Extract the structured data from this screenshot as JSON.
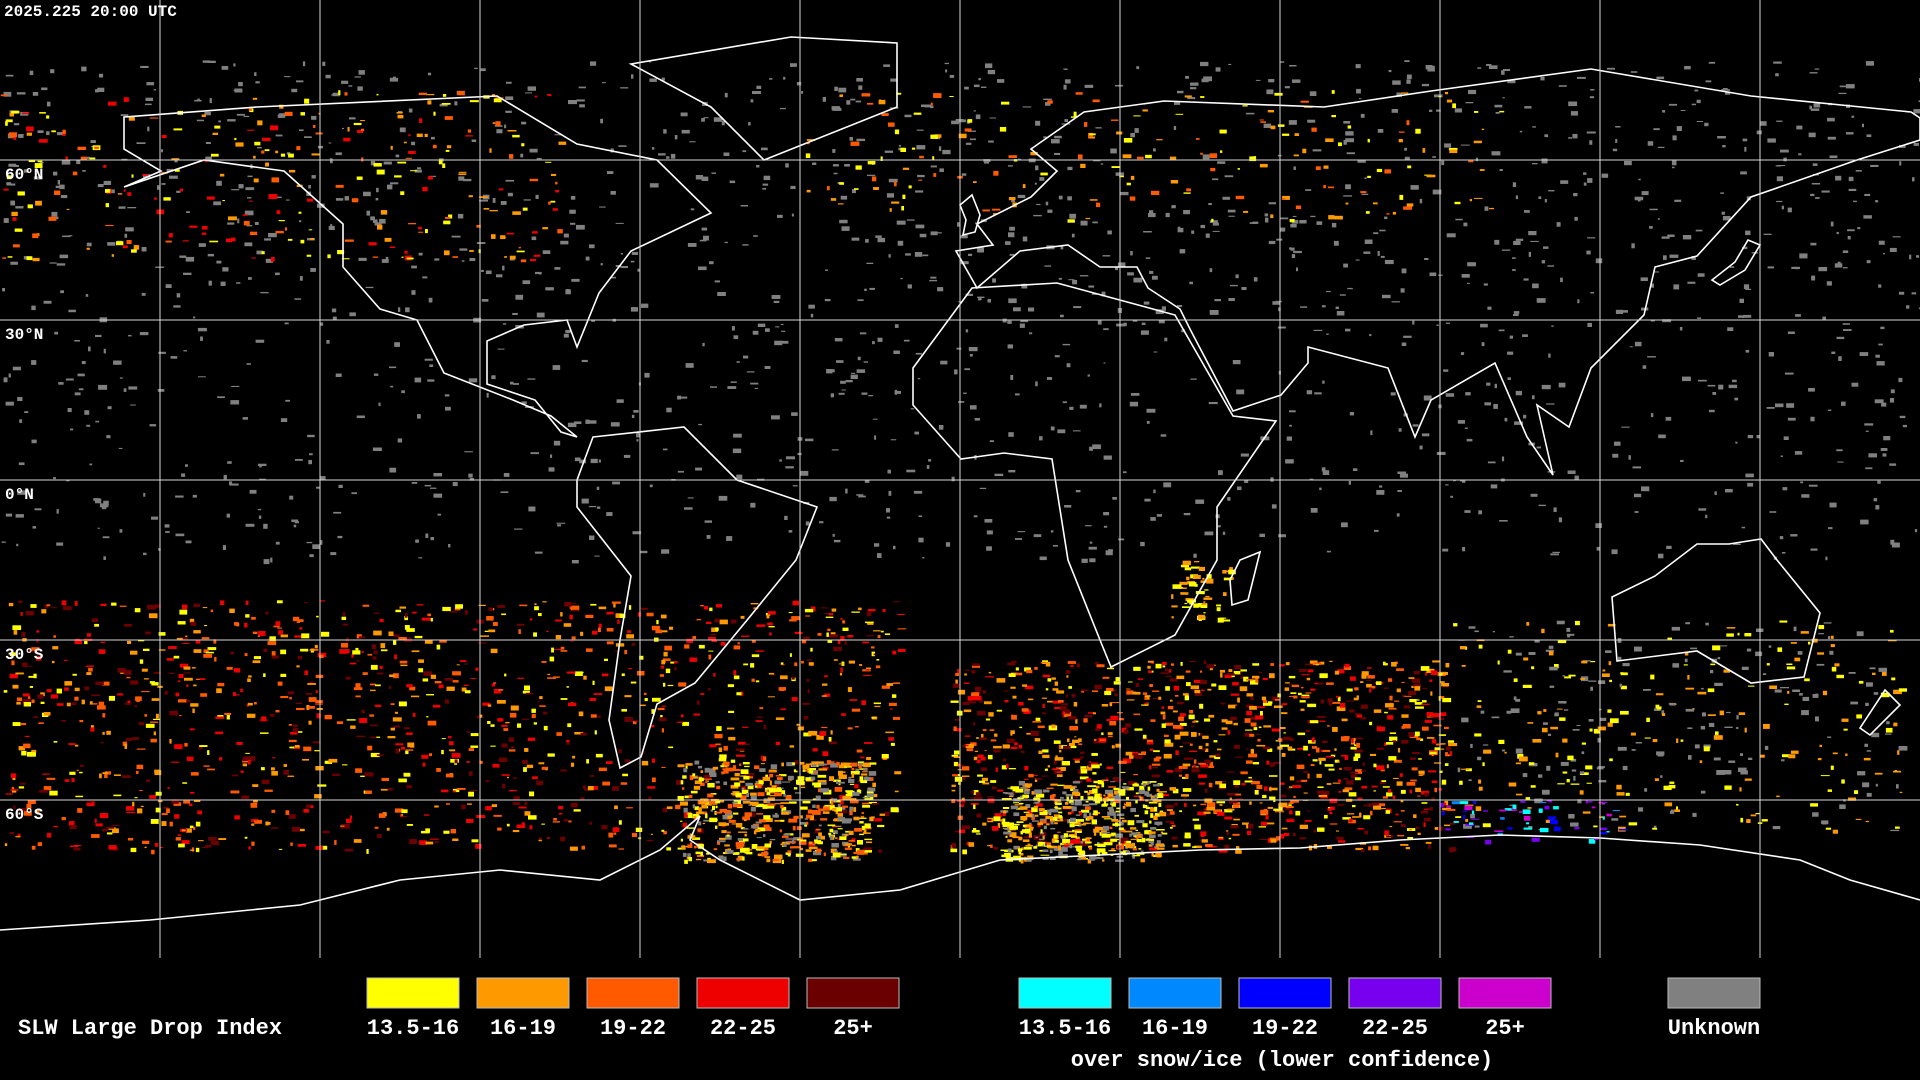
{
  "header": {
    "timestamp": "2025.225 20:00 UTC"
  },
  "map": {
    "latitude_labels": [
      "60°N",
      "30°N",
      "0°N",
      "30°S",
      "60°S"
    ]
  },
  "legend": {
    "title": "SLW Large Drop Index",
    "liquid": [
      {
        "label": "13.5-16",
        "color": "#ffff00"
      },
      {
        "label": "16-19",
        "color": "#ff9900"
      },
      {
        "label": "19-22",
        "color": "#ff5a00"
      },
      {
        "label": "22-25",
        "color": "#ee0000"
      },
      {
        "label": "25+",
        "color": "#6b0000"
      }
    ],
    "snow_ice": [
      {
        "label": "13.5-16",
        "color": "#00ffff"
      },
      {
        "label": "16-19",
        "color": "#0088ff"
      },
      {
        "label": "19-22",
        "color": "#0000ff"
      },
      {
        "label": "22-25",
        "color": "#7700ee"
      },
      {
        "label": "25+",
        "color": "#cc00cc"
      }
    ],
    "snow_ice_caption": "over snow/ice (lower confidence)",
    "unknown": {
      "label": "Unknown",
      "color": "#808080"
    }
  }
}
